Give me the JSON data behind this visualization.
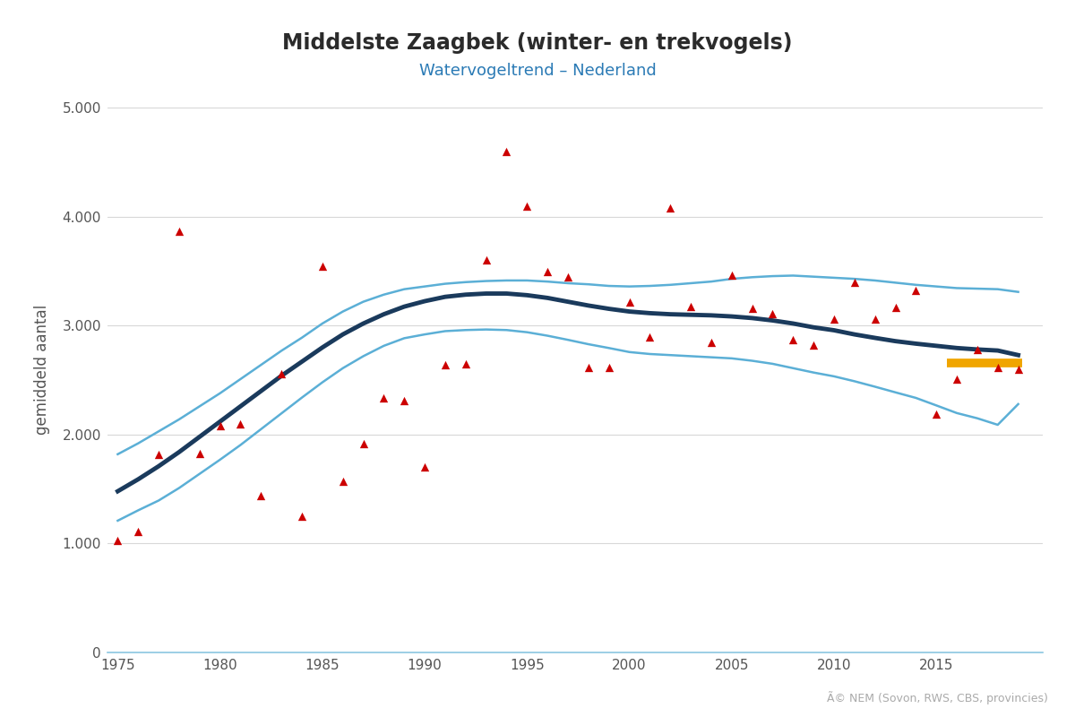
{
  "title": "Middelste Zaagbek (winter- en trekvogels)",
  "subtitle": "Watervogeltrend – Nederland",
  "ylabel": "gemiddeld aantal",
  "credit": "Ã© NEM (Sovon, RWS, CBS, provincies)",
  "title_color": "#2b2b2b",
  "subtitle_color": "#2a7ab5",
  "ylabel_color": "#555555",
  "background_color": "#ffffff",
  "grid_color": "#d8d8d8",
  "scatter_years": [
    1975,
    1976,
    1977,
    1978,
    1979,
    1980,
    1981,
    1982,
    1983,
    1984,
    1985,
    1986,
    1987,
    1988,
    1989,
    1990,
    1991,
    1992,
    1993,
    1994,
    1995,
    1996,
    1997,
    1998,
    1999,
    2000,
    2001,
    2002,
    2003,
    2004,
    2005,
    2006,
    2007,
    2008,
    2009,
    2010,
    2011,
    2012,
    2013,
    2014,
    2015,
    2016,
    2017,
    2018,
    2019
  ],
  "scatter_values": [
    1030,
    1110,
    1820,
    3870,
    1830,
    2080,
    2100,
    1440,
    2560,
    1250,
    3550,
    1570,
    1920,
    2340,
    2310,
    1700,
    2640,
    2650,
    3600,
    4600,
    4100,
    3500,
    3450,
    2620,
    2620,
    3220,
    2900,
    4080,
    3180,
    2850,
    3460,
    3160,
    3110,
    2870,
    2820,
    3060,
    3400,
    3060,
    3170,
    3320,
    2190,
    2510,
    2780,
    2620,
    2600
  ],
  "trend_years": [
    1975,
    1976,
    1977,
    1978,
    1979,
    1980,
    1981,
    1982,
    1983,
    1984,
    1985,
    1986,
    1987,
    1988,
    1989,
    1990,
    1991,
    1992,
    1993,
    1994,
    1995,
    1996,
    1997,
    1998,
    1999,
    2000,
    2001,
    2002,
    2003,
    2004,
    2005,
    2006,
    2007,
    2008,
    2009,
    2010,
    2011,
    2012,
    2013,
    2014,
    2015,
    2016,
    2017,
    2018,
    2019
  ],
  "trend_values": [
    1480,
    1590,
    1710,
    1840,
    1980,
    2120,
    2260,
    2400,
    2540,
    2670,
    2800,
    2920,
    3020,
    3105,
    3175,
    3225,
    3265,
    3285,
    3295,
    3295,
    3280,
    3255,
    3220,
    3185,
    3155,
    3130,
    3115,
    3105,
    3100,
    3095,
    3085,
    3070,
    3048,
    3020,
    2985,
    2958,
    2920,
    2888,
    2858,
    2835,
    2815,
    2795,
    2782,
    2772,
    2730
  ],
  "ci_upper": [
    1820,
    1920,
    2030,
    2140,
    2260,
    2380,
    2510,
    2640,
    2770,
    2890,
    3020,
    3130,
    3220,
    3285,
    3335,
    3360,
    3385,
    3400,
    3410,
    3415,
    3415,
    3405,
    3390,
    3380,
    3365,
    3360,
    3365,
    3375,
    3390,
    3405,
    3430,
    3445,
    3455,
    3460,
    3450,
    3440,
    3430,
    3415,
    3395,
    3375,
    3360,
    3345,
    3340,
    3335,
    3310
  ],
  "ci_lower": [
    1210,
    1305,
    1395,
    1510,
    1640,
    1770,
    1905,
    2050,
    2195,
    2340,
    2480,
    2610,
    2720,
    2815,
    2885,
    2920,
    2950,
    2960,
    2965,
    2960,
    2940,
    2908,
    2870,
    2830,
    2795,
    2758,
    2740,
    2730,
    2720,
    2710,
    2700,
    2678,
    2650,
    2610,
    2570,
    2535,
    2490,
    2440,
    2388,
    2337,
    2268,
    2198,
    2150,
    2090,
    2280
  ],
  "orange_line_x": [
    2015.5,
    2019.2
  ],
  "orange_line_y": [
    2655,
    2655
  ],
  "trend_color": "#1a3a5c",
  "ci_color": "#5bafd6",
  "scatter_color": "#cc0000",
  "orange_color": "#f0a500",
  "ylim": [
    0,
    5200
  ],
  "xlim": [
    1974.5,
    2020.2
  ],
  "yticks": [
    0,
    1000,
    2000,
    3000,
    4000,
    5000
  ],
  "ytick_labels": [
    "0",
    "1.000",
    "2.000",
    "3.000",
    "4.000",
    "5.000"
  ],
  "xticks": [
    1975,
    1980,
    1985,
    1990,
    1995,
    2000,
    2005,
    2010,
    2015
  ]
}
